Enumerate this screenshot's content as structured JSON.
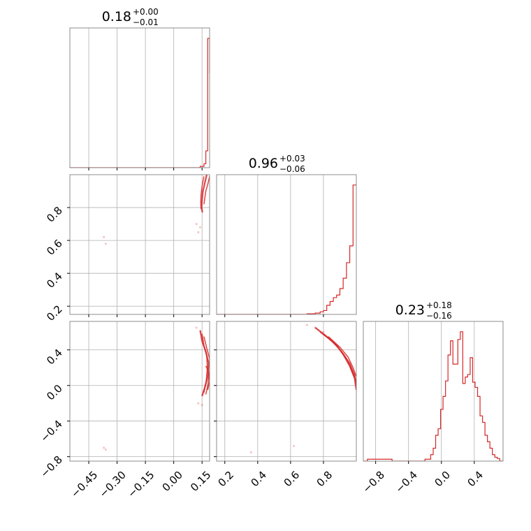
{
  "chart_data": {
    "type": "corner",
    "line_color": "#d62728",
    "grid": true,
    "panels": [
      {
        "name": "hist-param-1",
        "row": 0,
        "col": 0,
        "type": "histogram",
        "title": {
          "main": "0.18",
          "sup": "+0.00",
          "sub": "−0.01"
        },
        "x": [
          -0.55,
          -0.5,
          -0.45,
          -0.4,
          -0.35,
          -0.3,
          -0.25,
          -0.2,
          -0.15,
          -0.1,
          -0.05,
          0.0,
          0.05,
          0.1,
          0.14,
          0.16,
          0.17,
          0.18,
          0.19
        ],
        "y": [
          0,
          0,
          0,
          0,
          0,
          0,
          0,
          0,
          0,
          0,
          0,
          0,
          0,
          0,
          0.01,
          0.03,
          0.13,
          1.0,
          0.73
        ],
        "xlim": [
          -0.55,
          0.19
        ],
        "ylim": [
          0,
          1.08
        ],
        "xgrid": [
          -0.45,
          -0.3,
          -0.15,
          0.0,
          0.15
        ]
      },
      {
        "name": "hist-param-2",
        "row": 1,
        "col": 1,
        "type": "histogram",
        "title": {
          "main": "0.96",
          "sup": "+0.03",
          "sub": "−0.06"
        },
        "x": [
          0.15,
          0.5,
          0.7,
          0.75,
          0.78,
          0.8,
          0.82,
          0.84,
          0.86,
          0.88,
          0.9,
          0.92,
          0.94,
          0.96,
          0.98
        ],
        "y": [
          0,
          0,
          0.005,
          0.01,
          0.02,
          0.03,
          0.07,
          0.1,
          0.13,
          0.15,
          0.2,
          0.28,
          0.4,
          0.53,
          1.0
        ],
        "xlim": [
          0.15,
          1.0
        ],
        "ylim": [
          0,
          1.08
        ],
        "xgrid": [
          0.2,
          0.4,
          0.6,
          0.8
        ]
      },
      {
        "name": "hist-param-3",
        "row": 2,
        "col": 2,
        "type": "histogram",
        "title": {
          "main": "0.23",
          "sup": "+0.18",
          "sub": "−0.16"
        },
        "x": [
          -0.95,
          -0.9,
          -0.8,
          -0.6,
          -0.4,
          -0.2,
          -0.13,
          -0.1,
          -0.07,
          -0.04,
          -0.01,
          0.02,
          0.05,
          0.08,
          0.11,
          0.14,
          0.17,
          0.2,
          0.23,
          0.26,
          0.29,
          0.32,
          0.35,
          0.38,
          0.41,
          0.44,
          0.47,
          0.5,
          0.53,
          0.56,
          0.59,
          0.62,
          0.65,
          0.68,
          0.71
        ],
        "y": [
          0,
          0.015,
          0.015,
          0,
          0,
          0.015,
          0.05,
          0.1,
          0.2,
          0.25,
          0.4,
          0.5,
          0.62,
          0.82,
          0.93,
          0.75,
          0.75,
          0.94,
          1.0,
          0.6,
          0.65,
          0.67,
          0.8,
          0.61,
          0.57,
          0.5,
          0.35,
          0.3,
          0.2,
          0.15,
          0.1,
          0.05,
          0.03,
          0.02,
          0.0
        ],
        "xlim": [
          -0.95,
          0.75
        ],
        "ylim": [
          0,
          1.08
        ],
        "xgrid": [
          -0.8,
          -0.4,
          0.0,
          0.4
        ]
      },
      {
        "name": "contour-param-1-vs-2",
        "row": 1,
        "col": 0,
        "type": "contour",
        "xlim": [
          -0.55,
          0.19
        ],
        "ylim": [
          0.15,
          1.0
        ],
        "xgrid": [
          -0.45,
          -0.3,
          -0.15,
          0.0,
          0.15
        ],
        "ygrid": [
          0.2,
          0.4,
          0.6,
          0.8
        ],
        "scatter": [
          [
            -0.37,
            0.62
          ],
          [
            -0.36,
            0.58
          ],
          [
            0.13,
            0.65
          ],
          [
            0.12,
            0.7
          ],
          [
            0.14,
            0.68
          ]
        ],
        "contours": [
          [
            [
              0.175,
              1.0
            ],
            [
              0.165,
              0.95
            ],
            [
              0.155,
              0.9
            ],
            [
              0.15,
              0.85
            ],
            [
              0.148,
              0.8
            ],
            [
              0.152,
              0.77
            ]
          ],
          [
            [
              0.19,
              0.99
            ],
            [
              0.18,
              0.94
            ],
            [
              0.17,
              0.9
            ],
            [
              0.165,
              0.86
            ],
            [
              0.16,
              0.82
            ]
          ],
          [
            [
              0.16,
              0.99
            ],
            [
              0.15,
              0.93
            ],
            [
              0.145,
              0.88
            ],
            [
              0.143,
              0.83
            ],
            [
              0.145,
              0.79
            ]
          ]
        ]
      },
      {
        "name": "contour-param-1-vs-3",
        "row": 2,
        "col": 0,
        "type": "contour",
        "xlim": [
          -0.55,
          0.19
        ],
        "ylim": [
          -0.85,
          0.72
        ],
        "xgrid": [
          -0.45,
          -0.3,
          -0.15,
          0.0,
          0.15
        ],
        "ygrid": [
          -0.8,
          -0.4,
          0.0,
          0.4
        ],
        "scatter": [
          [
            -0.37,
            -0.7
          ],
          [
            -0.36,
            -0.72
          ],
          [
            0.12,
            0.65
          ],
          [
            0.13,
            -0.2
          ],
          [
            0.15,
            -0.22
          ]
        ],
        "contours": [
          [
            [
              0.14,
              0.62
            ],
            [
              0.15,
              0.5
            ],
            [
              0.17,
              0.38
            ],
            [
              0.185,
              0.25
            ],
            [
              0.18,
              0.1
            ],
            [
              0.165,
              -0.02
            ],
            [
              0.15,
              -0.12
            ]
          ],
          [
            [
              0.16,
              0.55
            ],
            [
              0.175,
              0.42
            ],
            [
              0.19,
              0.3
            ],
            [
              0.19,
              0.15
            ],
            [
              0.18,
              0.0
            ],
            [
              0.17,
              -0.1
            ]
          ],
          [
            [
              0.15,
              0.58
            ],
            [
              0.16,
              0.45
            ],
            [
              0.175,
              0.33
            ],
            [
              0.178,
              0.2
            ],
            [
              0.172,
              0.05
            ],
            [
              0.16,
              -0.08
            ]
          ],
          [
            [
              0.17,
              0.22
            ],
            [
              0.185,
              0.15
            ],
            [
              0.19,
              0.05
            ],
            [
              0.18,
              -0.05
            ]
          ]
        ]
      },
      {
        "name": "contour-param-2-vs-3",
        "row": 2,
        "col": 1,
        "type": "contour",
        "xlim": [
          0.15,
          1.0
        ],
        "ylim": [
          -0.85,
          0.72
        ],
        "xgrid": [
          0.2,
          0.4,
          0.6,
          0.8
        ],
        "ygrid": [
          -0.8,
          -0.4,
          0.0,
          0.4
        ],
        "scatter": [
          [
            0.36,
            -0.75
          ],
          [
            0.62,
            -0.68
          ],
          [
            0.75,
            0.65
          ],
          [
            0.8,
            0.6
          ],
          [
            0.7,
            0.68
          ]
        ],
        "contours": [
          [
            [
              0.75,
              0.65
            ],
            [
              0.82,
              0.55
            ],
            [
              0.88,
              0.45
            ],
            [
              0.92,
              0.35
            ],
            [
              0.96,
              0.22
            ],
            [
              0.99,
              0.08
            ],
            [
              1.0,
              -0.05
            ]
          ],
          [
            [
              0.78,
              0.6
            ],
            [
              0.85,
              0.5
            ],
            [
              0.9,
              0.4
            ],
            [
              0.94,
              0.3
            ],
            [
              0.97,
              0.18
            ],
            [
              1.0,
              0.05
            ]
          ],
          [
            [
              0.8,
              0.58
            ],
            [
              0.87,
              0.47
            ],
            [
              0.92,
              0.36
            ],
            [
              0.96,
              0.25
            ],
            [
              0.99,
              0.12
            ],
            [
              1.0,
              0.0
            ]
          ],
          [
            [
              0.83,
              0.55
            ],
            [
              0.9,
              0.43
            ],
            [
              0.95,
              0.32
            ],
            [
              0.98,
              0.2
            ],
            [
              1.0,
              0.1
            ]
          ]
        ]
      }
    ],
    "tick_labels": {
      "col0_x": [
        {
          "v": -0.45,
          "t": "−0.45"
        },
        {
          "v": -0.3,
          "t": "−0.30"
        },
        {
          "v": -0.15,
          "t": "−0.15"
        },
        {
          "v": 0.0,
          "t": "0.00"
        },
        {
          "v": 0.15,
          "t": "0.15"
        }
      ],
      "col1_x": [
        {
          "v": 0.2,
          "t": "0.2"
        },
        {
          "v": 0.4,
          "t": "0.4"
        },
        {
          "v": 0.6,
          "t": "0.6"
        },
        {
          "v": 0.8,
          "t": "0.8"
        }
      ],
      "col2_x": [
        {
          "v": -0.8,
          "t": "−0.8"
        },
        {
          "v": -0.4,
          "t": "−0.4"
        },
        {
          "v": 0.0,
          "t": "0.0"
        },
        {
          "v": 0.4,
          "t": "0.4"
        }
      ],
      "row1_y": [
        {
          "v": 0.2,
          "t": "0.2"
        },
        {
          "v": 0.4,
          "t": "0.4"
        },
        {
          "v": 0.6,
          "t": "0.6"
        },
        {
          "v": 0.8,
          "t": "0.8"
        }
      ],
      "row2_y": [
        {
          "v": -0.8,
          "t": "−0.8"
        },
        {
          "v": -0.4,
          "t": "−0.4"
        },
        {
          "v": 0.0,
          "t": "0.0"
        },
        {
          "v": 0.4,
          "t": "0.4"
        }
      ]
    }
  }
}
